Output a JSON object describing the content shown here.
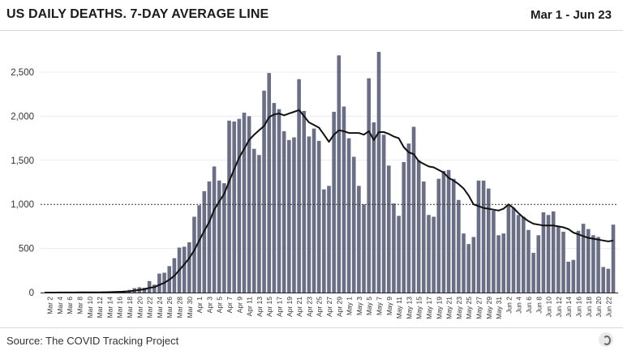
{
  "header": {
    "title": "US DAILY DEATHS. 7-DAY AVERAGE LINE",
    "date_range": "Mar 1 - Jun 23"
  },
  "footer": {
    "source": "Source: The COVID Tracking Project",
    "logo_icon": "covid-tracking-logo"
  },
  "chart_data": {
    "type": "bar",
    "title": "US DAILY DEATHS. 7-DAY AVERAGE LINE",
    "bar_color": "#6b6f86",
    "line_color": "#111111",
    "ylim": [
      0,
      2750
    ],
    "yticks": [
      0,
      500,
      1000,
      1500,
      2000,
      2500
    ],
    "ytick_labels": [
      "0",
      "500",
      "1,000",
      "1,500",
      "2,000",
      "2,500"
    ],
    "reference_line": 1000,
    "grid": true,
    "categories": [
      "Mar 1",
      "Mar 2",
      "Mar 3",
      "Mar 4",
      "Mar 5",
      "Mar 6",
      "Mar 7",
      "Mar 8",
      "Mar 9",
      "Mar 10",
      "Mar 11",
      "Mar 12",
      "Mar 13",
      "Mar 14",
      "Mar 15",
      "Mar 16",
      "Mar 17",
      "Mar 18",
      "Mar 19",
      "Mar 20",
      "Mar 21",
      "Mar 22",
      "Mar 23",
      "Mar 24",
      "Mar 25",
      "Mar 26",
      "Mar 27",
      "Mar 28",
      "Mar 29",
      "Mar 30",
      "Mar 31",
      "Apr 1",
      "Apr 2",
      "Apr 3",
      "Apr 4",
      "Apr 5",
      "Apr 6",
      "Apr 7",
      "Apr 8",
      "Apr 9",
      "Apr 10",
      "Apr 11",
      "Apr 12",
      "Apr 13",
      "Apr 14",
      "Apr 15",
      "Apr 16",
      "Apr 17",
      "Apr 18",
      "Apr 19",
      "Apr 20",
      "Apr 21",
      "Apr 22",
      "Apr 23",
      "Apr 24",
      "Apr 25",
      "Apr 26",
      "Apr 27",
      "Apr 28",
      "Apr 29",
      "Apr 30",
      "May 1",
      "May 2",
      "May 3",
      "May 4",
      "May 5",
      "May 6",
      "May 7",
      "May 8",
      "May 9",
      "May 10",
      "May 11",
      "May 12",
      "May 13",
      "May 14",
      "May 15",
      "May 16",
      "May 17",
      "May 18",
      "May 19",
      "May 20",
      "May 21",
      "May 22",
      "May 23",
      "May 24",
      "May 25",
      "May 26",
      "May 27",
      "May 28",
      "May 29",
      "May 30",
      "May 31",
      "Jun 1",
      "Jun 2",
      "Jun 3",
      "Jun 4",
      "Jun 5",
      "Jun 6",
      "Jun 7",
      "Jun 8",
      "Jun 9",
      "Jun 10",
      "Jun 11",
      "Jun 12",
      "Jun 13",
      "Jun 14",
      "Jun 15",
      "Jun 16",
      "Jun 17",
      "Jun 18",
      "Jun 19",
      "Jun 20",
      "Jun 21",
      "Jun 22",
      "Jun 23"
    ],
    "series": [
      {
        "type": "bar",
        "values": [
          0,
          1,
          1,
          1,
          2,
          2,
          2,
          2,
          3,
          4,
          5,
          5,
          6,
          7,
          10,
          18,
          22,
          30,
          50,
          60,
          55,
          130,
          90,
          215,
          225,
          300,
          390,
          510,
          520,
          570,
          860,
          990,
          1150,
          1260,
          1430,
          1270,
          1240,
          1950,
          1940,
          1970,
          2040,
          2000,
          1630,
          1560,
          2290,
          2490,
          2150,
          2080,
          1830,
          1730,
          1760,
          2420,
          2060,
          1770,
          1860,
          1720,
          1170,
          1210,
          2050,
          2690,
          2110,
          1750,
          1540,
          1210,
          1000,
          2430,
          1930,
          2730,
          1790,
          1440,
          1010,
          870,
          1480,
          1690,
          1880,
          1500,
          1260,
          880,
          860,
          1290,
          1380,
          1390,
          1290,
          1050,
          670,
          550,
          630,
          1270,
          1270,
          1180,
          930,
          650,
          670,
          1000,
          960,
          880,
          860,
          710,
          450,
          650,
          910,
          880,
          920,
          750,
          690,
          350,
          370,
          700,
          780,
          720,
          650,
          630,
          290,
          270,
          770
        ]
      },
      {
        "type": "line",
        "values": [
          0,
          0,
          0,
          1,
          1,
          1,
          1,
          2,
          2,
          2,
          3,
          3,
          4,
          5,
          6,
          8,
          10,
          14,
          22,
          30,
          37,
          53,
          62,
          86,
          110,
          145,
          190,
          255,
          320,
          390,
          480,
          590,
          700,
          800,
          940,
          1030,
          1120,
          1260,
          1400,
          1530,
          1630,
          1730,
          1790,
          1840,
          1890,
          1990,
          2020,
          2030,
          2010,
          2030,
          2050,
          2070,
          2000,
          1930,
          1900,
          1870,
          1790,
          1710,
          1790,
          1840,
          1830,
          1810,
          1810,
          1810,
          1790,
          1830,
          1730,
          1820,
          1820,
          1800,
          1770,
          1750,
          1650,
          1590,
          1570,
          1490,
          1460,
          1430,
          1420,
          1390,
          1360,
          1300,
          1270,
          1230,
          1180,
          1100,
          1000,
          980,
          960,
          950,
          940,
          930,
          950,
          1000,
          960,
          900,
          850,
          810,
          780,
          770,
          760,
          760,
          760,
          750,
          740,
          720,
          680,
          660,
          640,
          620,
          610,
          600,
          590,
          580,
          590
        ]
      }
    ]
  }
}
